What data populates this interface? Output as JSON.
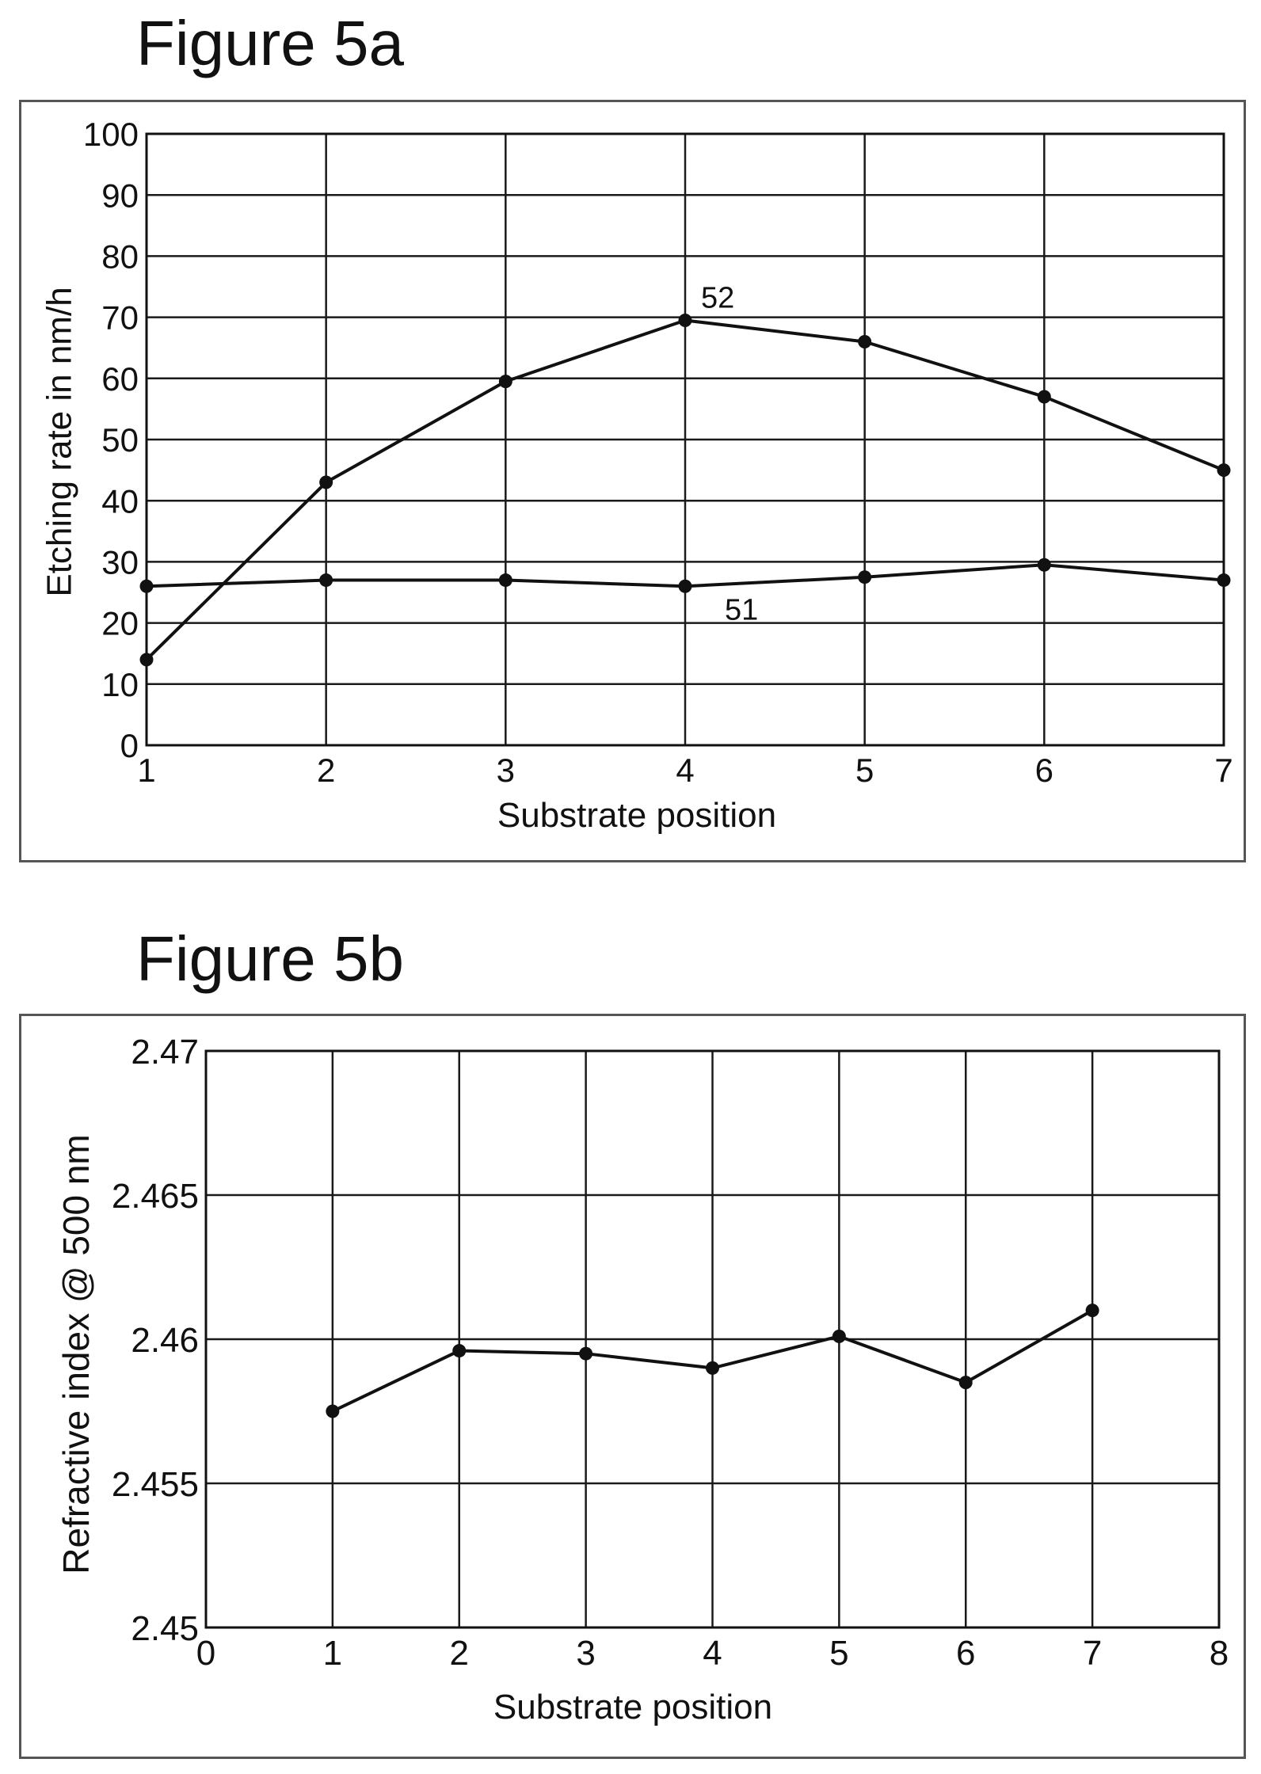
{
  "colors": {
    "ink": "#111111",
    "frame": "#555555",
    "background": "#ffffff"
  },
  "chart_data": [
    {
      "type": "line",
      "title": "Figure 5a",
      "xlabel": "Substrate position",
      "ylabel": "Etching rate in nm/h",
      "x": [
        1,
        2,
        3,
        4,
        5,
        6,
        7
      ],
      "xlim": [
        1,
        7
      ],
      "ylim": [
        0,
        100
      ],
      "x_ticks": [
        "1",
        "2",
        "3",
        "4",
        "5",
        "6",
        "7"
      ],
      "y_ticks": [
        "0",
        "10",
        "20",
        "30",
        "40",
        "50",
        "60",
        "70",
        "80",
        "90",
        "100"
      ],
      "grid": true,
      "series": [
        {
          "name": "51",
          "values": [
            26,
            27,
            27,
            26,
            27.5,
            29.5,
            27
          ]
        },
        {
          "name": "52",
          "values": [
            14,
            43,
            59.5,
            69.5,
            66,
            57,
            45
          ]
        }
      ]
    },
    {
      "type": "line",
      "title": "Figure 5b",
      "xlabel": "Substrate position",
      "ylabel": "Refractive index @ 500 nm",
      "x": [
        1,
        2,
        3,
        4,
        5,
        6,
        7
      ],
      "xlim": [
        0,
        8
      ],
      "ylim": [
        2.45,
        2.47
      ],
      "x_ticks": [
        "0",
        "1",
        "2",
        "3",
        "4",
        "5",
        "6",
        "7",
        "8"
      ],
      "y_ticks": [
        "2.45",
        "2.455",
        "2.46",
        "2.465",
        "2.47"
      ],
      "grid": true,
      "series": [
        {
          "values": [
            2.4575,
            2.4596,
            2.4595,
            2.459,
            2.4601,
            2.4585,
            2.461
          ]
        }
      ]
    }
  ]
}
